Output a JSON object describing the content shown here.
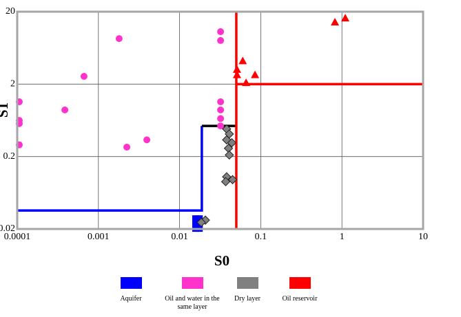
{
  "chart_data": {
    "type": "scatter",
    "xlabel": "S0",
    "ylabel": "S1",
    "xlog": true,
    "ylog": true,
    "grid": true,
    "xlim": [
      0.0001,
      10
    ],
    "ylim": [
      0.02,
      20
    ],
    "xticks": [
      0.0001,
      0.001,
      0.01,
      0.1,
      1,
      10
    ],
    "yticks": [
      0.02,
      0.2,
      2,
      20
    ],
    "series": [
      {
        "name": "Aquifer",
        "color": "#0000ff",
        "marker": "square",
        "x": [
          0.0158,
          0.0175,
          0.0158,
          0.0175,
          0.0158,
          0.0175
        ],
        "values": [
          0.0277,
          0.0277,
          0.0237,
          0.0237,
          0.0204,
          0.0204
        ]
      },
      {
        "name": "Oil and water in the same layer",
        "color": "#ff33cc",
        "marker": "circle",
        "x": [
          0.000106,
          0.000106,
          0.000106,
          0.000106,
          0.000386,
          0.000665,
          0.0018,
          0.00224,
          0.00395,
          0.032,
          0.032,
          0.032,
          0.032,
          0.032,
          0.032
        ],
        "values": [
          1.14,
          0.63,
          0.57,
          0.29,
          0.88,
          2.56,
          8.5,
          0.27,
          0.34,
          10.6,
          8.0,
          1.14,
          0.88,
          0.67,
          0.53
        ]
      },
      {
        "name": "Dry layer",
        "color": "#808080",
        "marker": "diamond",
        "x": [
          0.038,
          0.041,
          0.038,
          0.044,
          0.04,
          0.041,
          0.038,
          0.045,
          0.037,
          0.0208,
          0.0185
        ],
        "values": [
          0.48,
          0.41,
          0.34,
          0.31,
          0.26,
          0.21,
          0.105,
          0.096,
          0.09,
          0.0265,
          0.0247
        ]
      },
      {
        "name": "Oil reservoir",
        "color": "#ff0000",
        "marker": "triangle",
        "x": [
          0.051,
          0.051,
          0.06,
          0.066,
          0.085,
          0.82,
          1.1
        ],
        "values": [
          3.2,
          2.7,
          4.2,
          2.1,
          2.7,
          14.4,
          16.4
        ]
      }
    ],
    "lines": [
      {
        "color": "#0000ff",
        "x": [
          0.0001,
          0.0188,
          0.0188
        ],
        "y": [
          0.036,
          0.036,
          0.53
        ]
      },
      {
        "color": "#000000",
        "x": [
          0.0188,
          0.05
        ],
        "y": [
          0.53,
          0.53
        ]
      },
      {
        "color": "#ff0000",
        "x": [
          0.05,
          0.05
        ],
        "y": [
          0.02,
          20
        ]
      },
      {
        "color": "#ff0000",
        "x": [
          0.05,
          10
        ],
        "y": [
          2,
          2
        ]
      }
    ]
  }
}
